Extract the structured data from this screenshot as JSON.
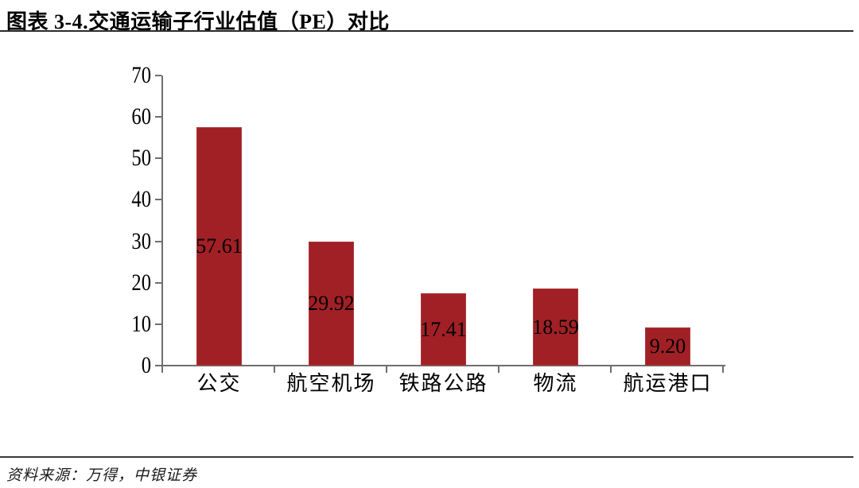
{
  "header": {
    "title": "图表 3-4.交通运输子行业估值（PE）对比"
  },
  "chart_data": {
    "type": "bar",
    "title": "图表 3-4.交通运输子行业估值（PE）对比",
    "categories": [
      "公交",
      "航空机场",
      "铁路公路",
      "物流",
      "航运港口"
    ],
    "values": [
      57.61,
      29.92,
      17.41,
      18.59,
      9.2
    ],
    "value_labels": [
      "57.61",
      "29.92",
      "17.41",
      "18.59",
      "9.20"
    ],
    "value_label_position": "inside-middle",
    "xlabel": "",
    "ylabel": "",
    "ylim": [
      0,
      70
    ],
    "yticks": [
      0,
      10,
      20,
      30,
      40,
      50,
      60,
      70
    ],
    "grid": false,
    "legend": "none",
    "bar_color": "#A02026",
    "axis_color": "#6e6e6e",
    "label_color": "#000000"
  },
  "footer": {
    "source": "资料来源：万得，中银证券"
  }
}
